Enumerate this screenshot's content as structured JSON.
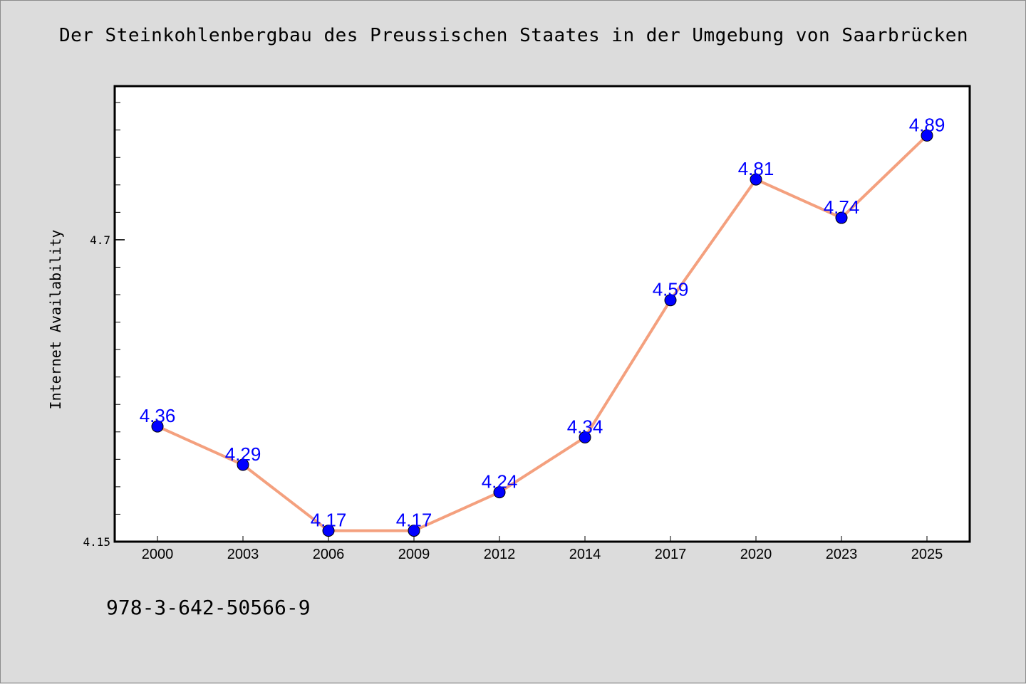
{
  "chart_data": {
    "type": "line",
    "title": "Der Steinkohlenbergbau des Preussischen Staates in der Umgebung von Saarbrücken",
    "xlabel": "",
    "ylabel": "Internet Availability",
    "categories": [
      "2000",
      "2003",
      "2006",
      "2009",
      "2012",
      "2014",
      "2017",
      "2020",
      "2023",
      "2025"
    ],
    "series": [
      {
        "values": [
          4.36,
          4.29,
          4.17,
          4.17,
          4.24,
          4.34,
          4.59,
          4.81,
          4.74,
          4.89
        ],
        "labels": [
          "4.36",
          "4.29",
          "4.17",
          "4.17",
          "4.24",
          "4.34",
          "4.59",
          "4.81",
          "4.74",
          "4.89"
        ],
        "line_color": "#f4a07e",
        "marker_color": "#0000ff"
      }
    ],
    "ylim": [
      4.15,
      4.98
    ],
    "yticks": [
      "4.15",
      "4.7"
    ],
    "yminor_step": 0.05,
    "grid": false,
    "legend": "none",
    "plot_background": "#ffffff",
    "page_background": "#dcdcdc"
  },
  "footer": {
    "isbn": "978-3-642-50566-9"
  }
}
